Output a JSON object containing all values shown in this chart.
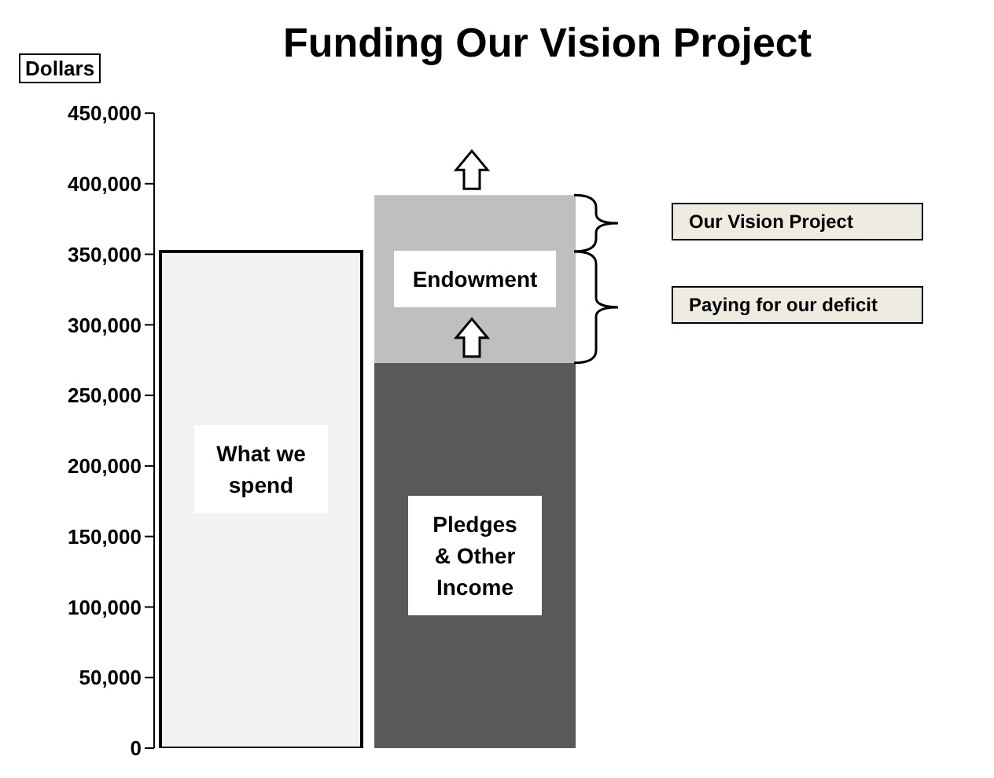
{
  "chart_data": {
    "type": "bar",
    "title": "Funding Our Vision Project",
    "ylabel": "Dollars",
    "stacked": true,
    "categories": [
      null,
      null
    ],
    "series": [
      {
        "name": "What we spend",
        "color": "#f2f2f2",
        "values": [
          352000,
          null
        ]
      },
      {
        "name": "Pledges & Other Income",
        "color": "#595959",
        "values": [
          null,
          273000
        ]
      },
      {
        "name": "Endowment",
        "color": "#bfbfbf",
        "values": [
          null,
          119000
        ]
      }
    ],
    "ylim": [
      0,
      450000
    ],
    "yticks": [
      0,
      {
        "value": 50000,
        "label": "50,000"
      },
      {
        "value": 100000,
        "label": "100,000"
      },
      {
        "value": 150000,
        "label": "150,000"
      },
      {
        "value": 200000,
        "label": "200,000"
      },
      {
        "value": 250000,
        "label": "250,000"
      },
      {
        "value": 300000,
        "label": "300,000"
      },
      {
        "value": 350000,
        "label": "350,000"
      },
      {
        "value": 400000,
        "label": "400,000"
      },
      {
        "value": 450000,
        "label": "450,000"
      }
    ],
    "annotations": [
      "Our Vision Project",
      "Paying for our deficit"
    ]
  }
}
